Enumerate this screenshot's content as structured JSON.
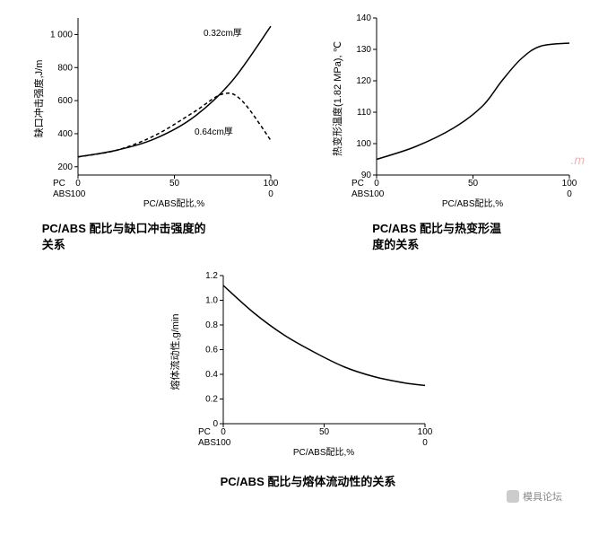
{
  "chart1": {
    "type": "line",
    "title": "PC/ABS 配比与缺口冲击强度的\n关系",
    "ylabel": "缺口冲击强度,J/m",
    "xlabel": "PC/ABS配比,%",
    "xticks_top": [
      "0",
      "50",
      "100"
    ],
    "xticks_bot": [
      "100",
      "",
      "0"
    ],
    "xprefix_top": "PC",
    "xprefix_bot": "ABS",
    "yticks": [
      "200",
      "400",
      "600",
      "800",
      "1 000"
    ],
    "ylim": [
      150,
      1100
    ],
    "xlim": [
      0,
      100
    ],
    "series": [
      {
        "name": "0.32cm",
        "label": "0.32cm厚",
        "dash": false,
        "points": [
          [
            0,
            260
          ],
          [
            20,
            300
          ],
          [
            40,
            370
          ],
          [
            60,
            500
          ],
          [
            80,
            720
          ],
          [
            100,
            1050
          ]
        ]
      },
      {
        "name": "0.64cm",
        "label": "0.64cm厚",
        "dash": true,
        "points": [
          [
            0,
            260
          ],
          [
            20,
            300
          ],
          [
            40,
            390
          ],
          [
            60,
            530
          ],
          [
            75,
            640
          ],
          [
            85,
            600
          ],
          [
            100,
            360
          ]
        ]
      }
    ],
    "colors": {
      "line": "#000000",
      "bg": "#ffffff"
    }
  },
  "chart2": {
    "type": "line",
    "title": "PC/ABS 配比与热变形温\n度的关系",
    "ylabel": "热变形温度(1.82 MPa), ℃",
    "xlabel": "PC/ABS配比,%",
    "xticks_top": [
      "0",
      "50",
      "100"
    ],
    "xticks_bot": [
      "100",
      "",
      "0"
    ],
    "xprefix_top": "PC",
    "xprefix_bot": "ABS",
    "yticks": [
      "90",
      "100",
      "110",
      "120",
      "130",
      "140"
    ],
    "ylim": [
      90,
      140
    ],
    "xlim": [
      0,
      100
    ],
    "series": [
      {
        "name": "hdt",
        "dash": false,
        "points": [
          [
            0,
            95
          ],
          [
            20,
            99
          ],
          [
            40,
            105
          ],
          [
            55,
            112
          ],
          [
            65,
            120
          ],
          [
            75,
            127
          ],
          [
            85,
            131
          ],
          [
            100,
            132
          ]
        ]
      }
    ],
    "colors": {
      "line": "#000000",
      "bg": "#ffffff"
    }
  },
  "chart3": {
    "type": "line",
    "title": "PC/ABS 配比与熔体流动性的关系",
    "ylabel": "熔体流动性,g/min",
    "xlabel": "PC/ABS配比,%",
    "xticks_top": [
      "0",
      "50",
      "100"
    ],
    "xticks_bot": [
      "100",
      "",
      "0"
    ],
    "xprefix_top": "PC",
    "xprefix_bot": "ABS",
    "yticks": [
      "0",
      "0.2",
      "0.4",
      "0.6",
      "0.8",
      "1.0",
      "1.2"
    ],
    "ylim": [
      0,
      1.2
    ],
    "xlim": [
      0,
      100
    ],
    "series": [
      {
        "name": "mfi",
        "dash": false,
        "points": [
          [
            0,
            1.12
          ],
          [
            15,
            0.9
          ],
          [
            30,
            0.72
          ],
          [
            45,
            0.58
          ],
          [
            60,
            0.46
          ],
          [
            75,
            0.38
          ],
          [
            90,
            0.33
          ],
          [
            100,
            0.31
          ]
        ]
      }
    ],
    "colors": {
      "line": "#000000",
      "bg": "#ffffff"
    }
  },
  "watermark_right": ".m",
  "footer": "模具论坛"
}
